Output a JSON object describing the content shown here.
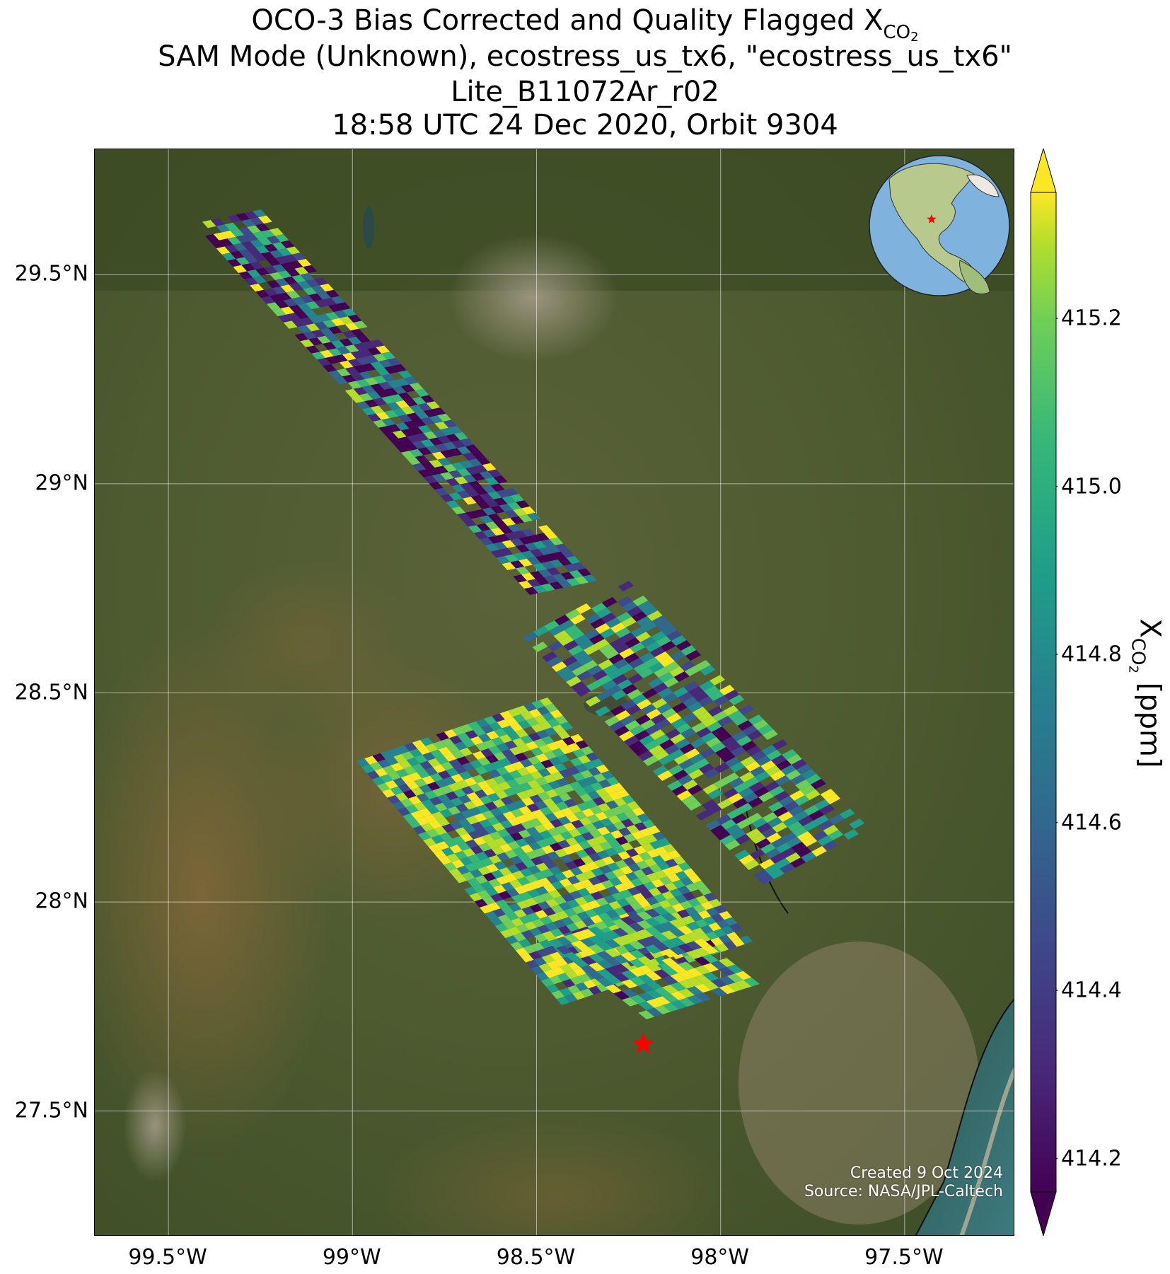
{
  "title": {
    "line1_prefix": "OCO-3 Bias Corrected and Quality Flagged X",
    "line1_sub": "CO",
    "line1_subsub": "2",
    "line2": "SAM Mode (Unknown), ecostress_us_tx6, \"ecostress_us_tx6\"",
    "line3": "Lite_B11072Ar_r02",
    "line4": "18:58 UTC 24 Dec 2020, Orbit 9304"
  },
  "axes": {
    "lat_ticks": [
      "29.5°N",
      "29°N",
      "28.5°N",
      "28°N",
      "27.5°N"
    ],
    "lon_ticks": [
      "99.5°W",
      "99°W",
      "98.5°W",
      "98°W",
      "97.5°W"
    ],
    "lat_values": [
      29.5,
      29.0,
      28.5,
      28.0,
      27.5
    ],
    "lon_values": [
      -99.5,
      -99.0,
      -98.5,
      -98.0,
      -97.5
    ],
    "lon_range": [
      -99.7,
      -97.2
    ],
    "lat_range": [
      27.2,
      29.8
    ],
    "gridlines": true
  },
  "colorbar": {
    "label_prefix": "X",
    "label_sub": "CO",
    "label_subsub": "2",
    "label_suffix": " [ppm]",
    "ticks": [
      "415.2",
      "415.0",
      "414.8",
      "414.6",
      "414.4",
      "414.2"
    ],
    "tick_values": [
      415.2,
      415.0,
      414.8,
      414.6,
      414.4,
      414.2
    ],
    "range": [
      414.16,
      415.35
    ],
    "colormap": "viridis",
    "extend": "both"
  },
  "target_marker": {
    "lat": 27.66,
    "lon": -98.21,
    "color": "#ff0000",
    "symbol": "star"
  },
  "credit": {
    "line1": "Created 9 Oct 2024",
    "line2": "Source: NASA/JPL-Caltech"
  },
  "inset": {
    "type": "globe",
    "marker_color": "#ff0000"
  },
  "colors": {
    "viridis_low": "#440154",
    "viridis_mid": "#21918c",
    "viridis_high": "#fde725",
    "land": "#4f5a30"
  }
}
